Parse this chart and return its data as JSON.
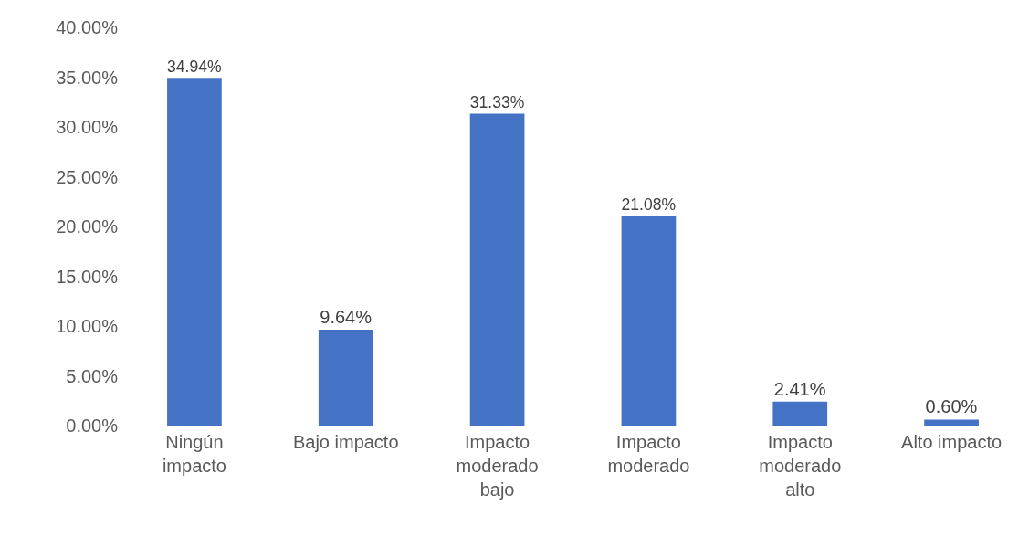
{
  "chart_data": {
    "type": "bar",
    "categories": [
      "Ningún impacto",
      "Bajo impacto",
      "Impacto moderado bajo",
      "Impacto moderado",
      "Impacto moderado alto",
      "Alto impacto"
    ],
    "values": [
      34.94,
      9.64,
      31.33,
      21.08,
      2.41,
      0.6
    ],
    "value_labels": [
      "34.94%",
      "9.64%",
      "31.33%",
      "21.08%",
      "2.41%",
      "0.60%"
    ],
    "color": "#4472c4",
    "ylim": [
      0,
      40
    ],
    "yticks": [
      {
        "value": 0,
        "label": "0.00%"
      },
      {
        "value": 5,
        "label": "5.00%"
      },
      {
        "value": 10,
        "label": "10.00%"
      },
      {
        "value": 15,
        "label": "15.00%"
      },
      {
        "value": 20,
        "label": "20.00%"
      },
      {
        "value": 25,
        "label": "25.00%"
      },
      {
        "value": 30,
        "label": "30.00%"
      },
      {
        "value": 35,
        "label": "35.00%"
      },
      {
        "value": 40,
        "label": "40.00%"
      }
    ],
    "grid": false
  }
}
